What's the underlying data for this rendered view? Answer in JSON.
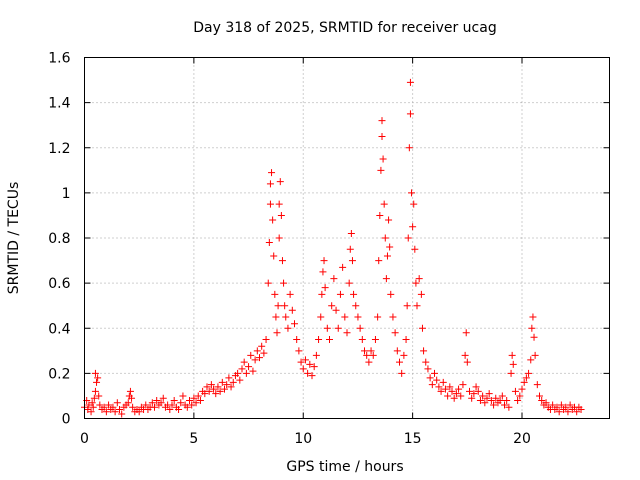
{
  "chart_data": {
    "type": "scatter",
    "title": "Day 318 of 2025, SRMTID for receiver ucag",
    "xlabel": "GPS time / hours",
    "ylabel": "SRMTID / TECUs",
    "xlim": [
      0,
      24
    ],
    "ylim": [
      0,
      1.6
    ],
    "xticks": [
      "0",
      "5",
      "10",
      "15",
      "20"
    ],
    "yticks": [
      "0",
      "0.2",
      "0.4",
      "0.6",
      "0.8",
      "1",
      "1.2",
      "1.4",
      "1.6"
    ],
    "grid": true,
    "marker": "+",
    "color": "#ff0000",
    "series": [
      {
        "name": "SRMTID",
        "points": [
          [
            0.0,
            0.05
          ],
          [
            0.1,
            0.08
          ],
          [
            0.15,
            0.04
          ],
          [
            0.2,
            0.06
          ],
          [
            0.3,
            0.03
          ],
          [
            0.35,
            0.07
          ],
          [
            0.4,
            0.05
          ],
          [
            0.45,
            0.09
          ],
          [
            0.5,
            0.12
          ],
          [
            0.5,
            0.2
          ],
          [
            0.55,
            0.16
          ],
          [
            0.6,
            0.18
          ],
          [
            0.65,
            0.1
          ],
          [
            0.7,
            0.06
          ],
          [
            0.8,
            0.04
          ],
          [
            0.9,
            0.05
          ],
          [
            1.0,
            0.03
          ],
          [
            1.1,
            0.06
          ],
          [
            1.2,
            0.04
          ],
          [
            1.3,
            0.05
          ],
          [
            1.4,
            0.03
          ],
          [
            1.5,
            0.07
          ],
          [
            1.6,
            0.04
          ],
          [
            1.7,
            0.02
          ],
          [
            1.8,
            0.05
          ],
          [
            1.9,
            0.06
          ],
          [
            2.0,
            0.07
          ],
          [
            2.05,
            0.1
          ],
          [
            2.1,
            0.12
          ],
          [
            2.15,
            0.09
          ],
          [
            2.2,
            0.05
          ],
          [
            2.3,
            0.03
          ],
          [
            2.4,
            0.04
          ],
          [
            2.5,
            0.03
          ],
          [
            2.6,
            0.05
          ],
          [
            2.7,
            0.04
          ],
          [
            2.8,
            0.06
          ],
          [
            2.9,
            0.04
          ],
          [
            3.0,
            0.05
          ],
          [
            3.1,
            0.07
          ],
          [
            3.2,
            0.05
          ],
          [
            3.3,
            0.08
          ],
          [
            3.4,
            0.06
          ],
          [
            3.5,
            0.07
          ],
          [
            3.6,
            0.09
          ],
          [
            3.7,
            0.05
          ],
          [
            3.8,
            0.06
          ],
          [
            3.9,
            0.04
          ],
          [
            4.0,
            0.06
          ],
          [
            4.1,
            0.08
          ],
          [
            4.2,
            0.05
          ],
          [
            4.3,
            0.04
          ],
          [
            4.4,
            0.07
          ],
          [
            4.5,
            0.1
          ],
          [
            4.6,
            0.06
          ],
          [
            4.7,
            0.05
          ],
          [
            4.8,
            0.08
          ],
          [
            4.9,
            0.06
          ],
          [
            5.0,
            0.09
          ],
          [
            5.1,
            0.07
          ],
          [
            5.2,
            0.1
          ],
          [
            5.3,
            0.08
          ],
          [
            5.4,
            0.12
          ],
          [
            5.5,
            0.11
          ],
          [
            5.6,
            0.14
          ],
          [
            5.7,
            0.12
          ],
          [
            5.8,
            0.15
          ],
          [
            5.9,
            0.13
          ],
          [
            6.0,
            0.11
          ],
          [
            6.1,
            0.14
          ],
          [
            6.2,
            0.12
          ],
          [
            6.3,
            0.16
          ],
          [
            6.4,
            0.13
          ],
          [
            6.5,
            0.15
          ],
          [
            6.6,
            0.18
          ],
          [
            6.7,
            0.14
          ],
          [
            6.8,
            0.16
          ],
          [
            6.9,
            0.19
          ],
          [
            7.0,
            0.2
          ],
          [
            7.1,
            0.17
          ],
          [
            7.2,
            0.22
          ],
          [
            7.3,
            0.25
          ],
          [
            7.4,
            0.2
          ],
          [
            7.5,
            0.23
          ],
          [
            7.6,
            0.28
          ],
          [
            7.7,
            0.21
          ],
          [
            7.8,
            0.26
          ],
          [
            7.9,
            0.3
          ],
          [
            8.0,
            0.27
          ],
          [
            8.1,
            0.32
          ],
          [
            8.2,
            0.29
          ],
          [
            8.3,
            0.35
          ],
          [
            8.4,
            0.6
          ],
          [
            8.45,
            0.78
          ],
          [
            8.5,
            0.95
          ],
          [
            8.5,
            1.04
          ],
          [
            8.55,
            1.09
          ],
          [
            8.6,
            0.88
          ],
          [
            8.65,
            0.72
          ],
          [
            8.7,
            0.55
          ],
          [
            8.75,
            0.45
          ],
          [
            8.8,
            0.38
          ],
          [
            8.85,
            0.5
          ],
          [
            8.9,
            0.8
          ],
          [
            8.9,
            0.95
          ],
          [
            8.95,
            1.05
          ],
          [
            9.0,
            0.9
          ],
          [
            9.05,
            0.7
          ],
          [
            9.1,
            0.6
          ],
          [
            9.15,
            0.5
          ],
          [
            9.2,
            0.45
          ],
          [
            9.3,
            0.4
          ],
          [
            9.4,
            0.55
          ],
          [
            9.5,
            0.48
          ],
          [
            9.6,
            0.42
          ],
          [
            9.7,
            0.35
          ],
          [
            9.8,
            0.3
          ],
          [
            9.9,
            0.25
          ],
          [
            10.0,
            0.22
          ],
          [
            10.1,
            0.26
          ],
          [
            10.2,
            0.2
          ],
          [
            10.3,
            0.24
          ],
          [
            10.4,
            0.19
          ],
          [
            10.5,
            0.23
          ],
          [
            10.6,
            0.28
          ],
          [
            10.7,
            0.35
          ],
          [
            10.8,
            0.45
          ],
          [
            10.85,
            0.55
          ],
          [
            10.9,
            0.65
          ],
          [
            10.95,
            0.7
          ],
          [
            11.0,
            0.58
          ],
          [
            11.1,
            0.4
          ],
          [
            11.2,
            0.35
          ],
          [
            11.3,
            0.5
          ],
          [
            11.4,
            0.62
          ],
          [
            11.5,
            0.48
          ],
          [
            11.6,
            0.4
          ],
          [
            11.7,
            0.55
          ],
          [
            11.8,
            0.67
          ],
          [
            11.9,
            0.45
          ],
          [
            12.0,
            0.38
          ],
          [
            12.1,
            0.6
          ],
          [
            12.15,
            0.75
          ],
          [
            12.2,
            0.82
          ],
          [
            12.25,
            0.7
          ],
          [
            12.3,
            0.55
          ],
          [
            12.4,
            0.5
          ],
          [
            12.5,
            0.45
          ],
          [
            12.6,
            0.4
          ],
          [
            12.7,
            0.35
          ],
          [
            12.8,
            0.3
          ],
          [
            12.9,
            0.28
          ],
          [
            13.0,
            0.25
          ],
          [
            13.1,
            0.3
          ],
          [
            13.2,
            0.28
          ],
          [
            13.3,
            0.35
          ],
          [
            13.4,
            0.45
          ],
          [
            13.45,
            0.7
          ],
          [
            13.5,
            0.9
          ],
          [
            13.55,
            1.1
          ],
          [
            13.6,
            1.25
          ],
          [
            13.6,
            1.32
          ],
          [
            13.65,
            1.15
          ],
          [
            13.7,
            0.95
          ],
          [
            13.75,
            0.8
          ],
          [
            13.8,
            0.62
          ],
          [
            13.85,
            0.72
          ],
          [
            13.9,
            0.88
          ],
          [
            13.95,
            0.76
          ],
          [
            14.0,
            0.55
          ],
          [
            14.1,
            0.45
          ],
          [
            14.2,
            0.38
          ],
          [
            14.3,
            0.3
          ],
          [
            14.4,
            0.25
          ],
          [
            14.5,
            0.2
          ],
          [
            14.6,
            0.28
          ],
          [
            14.7,
            0.35
          ],
          [
            14.75,
            0.5
          ],
          [
            14.8,
            0.8
          ],
          [
            14.85,
            1.2
          ],
          [
            14.9,
            1.49
          ],
          [
            14.9,
            1.35
          ],
          [
            14.95,
            1.0
          ],
          [
            15.0,
            0.85
          ],
          [
            15.05,
            0.95
          ],
          [
            15.1,
            0.75
          ],
          [
            15.15,
            0.6
          ],
          [
            15.2,
            0.5
          ],
          [
            15.3,
            0.62
          ],
          [
            15.4,
            0.55
          ],
          [
            15.45,
            0.4
          ],
          [
            15.5,
            0.3
          ],
          [
            15.6,
            0.25
          ],
          [
            15.7,
            0.22
          ],
          [
            15.8,
            0.18
          ],
          [
            15.9,
            0.15
          ],
          [
            16.0,
            0.2
          ],
          [
            16.1,
            0.17
          ],
          [
            16.2,
            0.14
          ],
          [
            16.3,
            0.12
          ],
          [
            16.4,
            0.16
          ],
          [
            16.5,
            0.13
          ],
          [
            16.6,
            0.1
          ],
          [
            16.7,
            0.14
          ],
          [
            16.8,
            0.12
          ],
          [
            16.9,
            0.09
          ],
          [
            17.0,
            0.11
          ],
          [
            17.1,
            0.13
          ],
          [
            17.2,
            0.1
          ],
          [
            17.3,
            0.15
          ],
          [
            17.4,
            0.28
          ],
          [
            17.45,
            0.38
          ],
          [
            17.5,
            0.25
          ],
          [
            17.6,
            0.12
          ],
          [
            17.7,
            0.09
          ],
          [
            17.8,
            0.11
          ],
          [
            17.9,
            0.14
          ],
          [
            18.0,
            0.12
          ],
          [
            18.1,
            0.08
          ],
          [
            18.2,
            0.1
          ],
          [
            18.3,
            0.07
          ],
          [
            18.4,
            0.09
          ],
          [
            18.5,
            0.11
          ],
          [
            18.6,
            0.08
          ],
          [
            18.7,
            0.06
          ],
          [
            18.8,
            0.09
          ],
          [
            18.9,
            0.07
          ],
          [
            19.0,
            0.08
          ],
          [
            19.1,
            0.1
          ],
          [
            19.2,
            0.06
          ],
          [
            19.3,
            0.08
          ],
          [
            19.4,
            0.05
          ],
          [
            19.5,
            0.2
          ],
          [
            19.55,
            0.28
          ],
          [
            19.6,
            0.24
          ],
          [
            19.7,
            0.12
          ],
          [
            19.8,
            0.08
          ],
          [
            19.9,
            0.1
          ],
          [
            20.0,
            0.13
          ],
          [
            20.1,
            0.16
          ],
          [
            20.2,
            0.18
          ],
          [
            20.3,
            0.2
          ],
          [
            20.4,
            0.26
          ],
          [
            20.45,
            0.4
          ],
          [
            20.5,
            0.45
          ],
          [
            20.55,
            0.36
          ],
          [
            20.6,
            0.28
          ],
          [
            20.7,
            0.15
          ],
          [
            20.8,
            0.1
          ],
          [
            20.9,
            0.08
          ],
          [
            21.0,
            0.06
          ],
          [
            21.1,
            0.07
          ],
          [
            21.2,
            0.05
          ],
          [
            21.3,
            0.04
          ],
          [
            21.4,
            0.06
          ],
          [
            21.5,
            0.04
          ],
          [
            21.6,
            0.05
          ],
          [
            21.7,
            0.03
          ],
          [
            21.8,
            0.06
          ],
          [
            21.9,
            0.04
          ],
          [
            22.0,
            0.05
          ],
          [
            22.1,
            0.03
          ],
          [
            22.2,
            0.06
          ],
          [
            22.3,
            0.04
          ],
          [
            22.4,
            0.05
          ],
          [
            22.5,
            0.03
          ],
          [
            22.6,
            0.05
          ],
          [
            22.7,
            0.04
          ]
        ]
      }
    ]
  }
}
